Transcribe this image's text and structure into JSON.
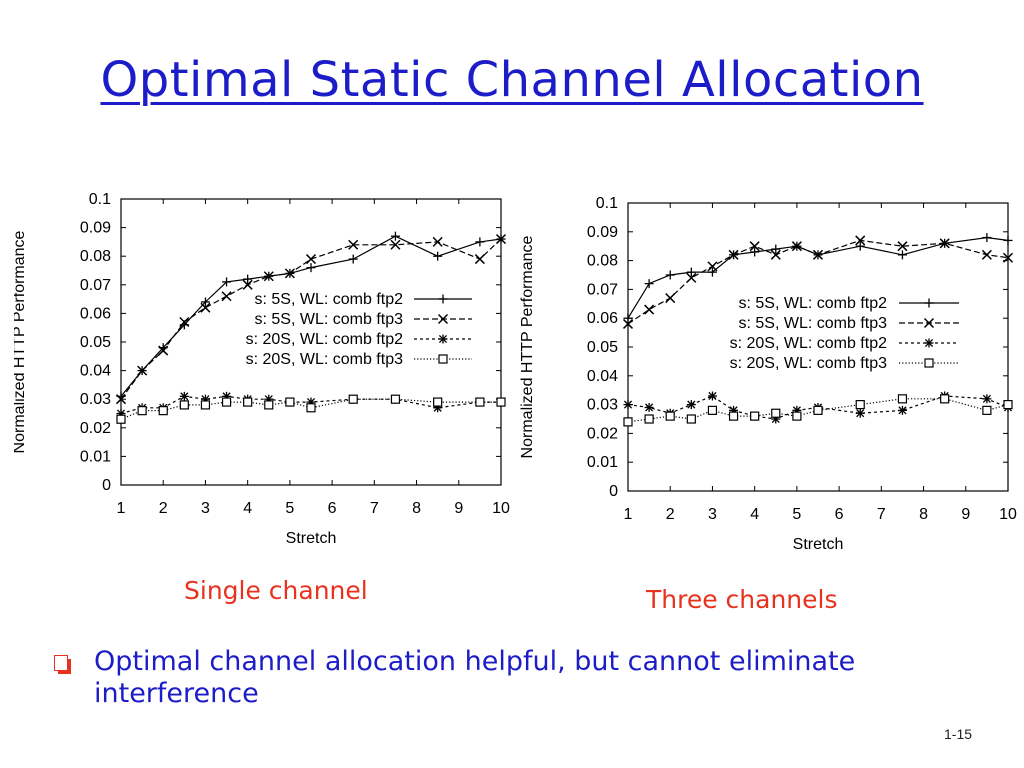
{
  "slide": {
    "title": "Optimal Static Channel Allocation",
    "caption_left": "Single channel",
    "caption_right": "Three channels",
    "bullet": "Optimal channel allocation helpful, but cannot eliminate interference",
    "page_number": "1-15"
  },
  "colors": {
    "title": "#1c1cc8",
    "caption": "#e8321e",
    "bullet_text": "#1c1cc8",
    "bullet_marker": "#e8321e",
    "plot_ink": "#000000"
  },
  "chart_data": [
    {
      "type": "line",
      "xlabel": "Stretch",
      "ylabel": "Normalized HTTP Performance",
      "xlim": [
        1,
        10
      ],
      "ylim": [
        0,
        0.1
      ],
      "xticks": [
        "1",
        "2",
        "3",
        "4",
        "5",
        "6",
        "7",
        "8",
        "9",
        "10"
      ],
      "yticks": [
        "0",
        "0.01",
        "0.02",
        "0.03",
        "0.04",
        "0.05",
        "0.06",
        "0.07",
        "0.08",
        "0.09",
        "0.1"
      ],
      "legend_position": "center-right",
      "series": [
        {
          "name": "s: 5S, WL: comb ftp2",
          "marker": "plus",
          "dash": "solid",
          "x": [
            1,
            1.5,
            2,
            2.5,
            3,
            3.5,
            4,
            4.5,
            5,
            5.5,
            6.5,
            7.5,
            8.5,
            9.5,
            10
          ],
          "y": [
            0.031,
            0.04,
            0.048,
            0.056,
            0.064,
            0.071,
            0.072,
            0.073,
            0.074,
            0.076,
            0.079,
            0.087,
            0.08,
            0.085,
            0.086
          ]
        },
        {
          "name": "s: 5S, WL: comb ftp3",
          "marker": "x",
          "dash": "dashed",
          "x": [
            1,
            1.5,
            2,
            2.5,
            3,
            3.5,
            4,
            4.5,
            5,
            5.5,
            6.5,
            7.5,
            8.5,
            9.5,
            10
          ],
          "y": [
            0.03,
            0.04,
            0.047,
            0.057,
            0.062,
            0.066,
            0.07,
            0.073,
            0.074,
            0.079,
            0.084,
            0.084,
            0.085,
            0.079,
            0.086
          ]
        },
        {
          "name": "s: 20S, WL: comb ftp2",
          "marker": "star",
          "dash": "shortdash",
          "x": [
            1,
            1.5,
            2,
            2.5,
            3,
            3.5,
            4,
            4.5,
            5,
            5.5,
            6.5,
            7.5,
            8.5,
            9.5,
            10
          ],
          "y": [
            0.025,
            0.027,
            0.027,
            0.031,
            0.03,
            0.031,
            0.03,
            0.03,
            0.029,
            0.029,
            0.03,
            0.03,
            0.027,
            0.029,
            0.029
          ]
        },
        {
          "name": "s: 20S, WL: comb ftp3",
          "marker": "square",
          "dash": "dotted",
          "x": [
            1,
            1.5,
            2,
            2.5,
            3,
            3.5,
            4,
            4.5,
            5,
            5.5,
            6.5,
            7.5,
            8.5,
            9.5,
            10
          ],
          "y": [
            0.023,
            0.026,
            0.026,
            0.028,
            0.028,
            0.029,
            0.029,
            0.028,
            0.029,
            0.027,
            0.03,
            0.03,
            0.029,
            0.029,
            0.029
          ]
        }
      ]
    },
    {
      "type": "line",
      "xlabel": "Stretch",
      "ylabel": "Normalized HTTP Performance",
      "xlim": [
        1,
        10
      ],
      "ylim": [
        0,
        0.1
      ],
      "xticks": [
        "1",
        "2",
        "3",
        "4",
        "5",
        "6",
        "7",
        "8",
        "9",
        "10"
      ],
      "yticks": [
        "0",
        "0.01",
        "0.02",
        "0.03",
        "0.04",
        "0.05",
        "0.06",
        "0.07",
        "0.08",
        "0.09",
        "0.1"
      ],
      "legend_position": "center-right",
      "series": [
        {
          "name": "s: 5S, WL: comb ftp2",
          "marker": "plus",
          "dash": "solid",
          "x": [
            1,
            1.5,
            2,
            2.5,
            3,
            3.5,
            4,
            4.5,
            5,
            5.5,
            6.5,
            7.5,
            8.5,
            9.5,
            10
          ],
          "y": [
            0.06,
            0.072,
            0.075,
            0.076,
            0.076,
            0.082,
            0.083,
            0.084,
            0.085,
            0.082,
            0.085,
            0.082,
            0.086,
            0.088,
            0.087
          ]
        },
        {
          "name": "s: 5S, WL: comb ftp3",
          "marker": "x",
          "dash": "dashed",
          "x": [
            1,
            1.5,
            2,
            2.5,
            3,
            3.5,
            4,
            4.5,
            5,
            5.5,
            6.5,
            7.5,
            8.5,
            9.5,
            10
          ],
          "y": [
            0.058,
            0.063,
            0.067,
            0.074,
            0.078,
            0.082,
            0.085,
            0.082,
            0.085,
            0.082,
            0.087,
            0.085,
            0.086,
            0.082,
            0.081
          ]
        },
        {
          "name": "s: 20S, WL: comb ftp2",
          "marker": "star",
          "dash": "shortdash",
          "x": [
            1,
            1.5,
            2,
            2.5,
            3,
            3.5,
            4,
            4.5,
            5,
            5.5,
            6.5,
            7.5,
            8.5,
            9.5,
            10
          ],
          "y": [
            0.03,
            0.029,
            0.027,
            0.03,
            0.033,
            0.028,
            0.026,
            0.025,
            0.028,
            0.029,
            0.027,
            0.028,
            0.033,
            0.032,
            0.029
          ]
        },
        {
          "name": "s: 20S, WL: comb ftp3",
          "marker": "square",
          "dash": "dotted",
          "x": [
            1,
            1.5,
            2,
            2.5,
            3,
            3.5,
            4,
            4.5,
            5,
            5.5,
            6.5,
            7.5,
            8.5,
            9.5,
            10
          ],
          "y": [
            0.024,
            0.025,
            0.026,
            0.025,
            0.028,
            0.026,
            0.026,
            0.027,
            0.026,
            0.028,
            0.03,
            0.032,
            0.032,
            0.028,
            0.03
          ]
        }
      ]
    }
  ]
}
